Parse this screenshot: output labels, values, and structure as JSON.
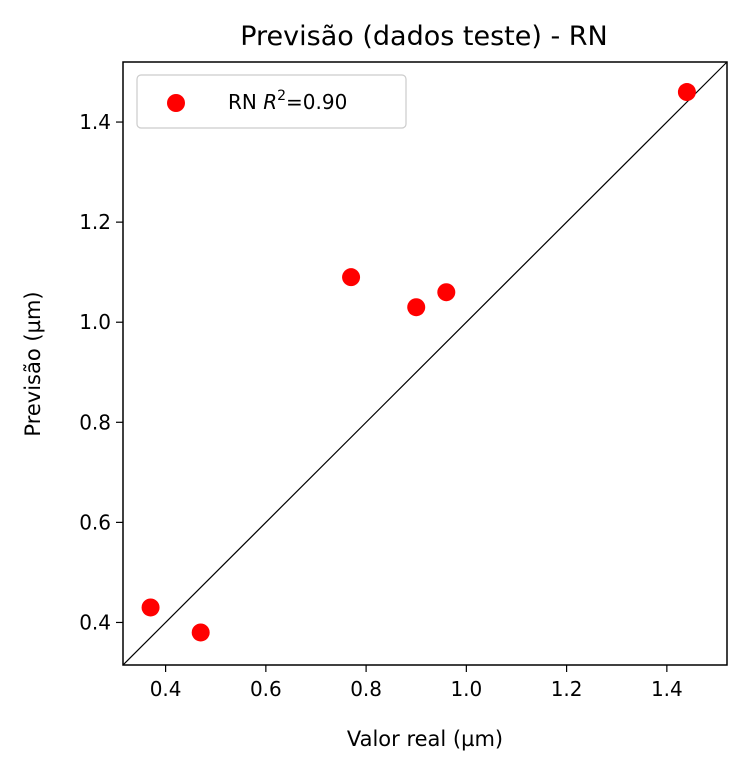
{
  "chart_data": {
    "type": "scatter",
    "title": "Previsão (dados teste) - RN",
    "xlabel": "Valor real (µm)",
    "ylabel": "Previsão (µm)",
    "xlim": [
      0.315,
      1.52
    ],
    "ylim": [
      0.315,
      1.52
    ],
    "xticks": [
      0.4,
      0.6,
      0.8,
      1.0,
      1.2,
      1.4
    ],
    "yticks": [
      0.4,
      0.6,
      0.8,
      1.0,
      1.2,
      1.4
    ],
    "xtick_labels": [
      "0.4",
      "0.6",
      "0.8",
      "1.0",
      "1.2",
      "1.4"
    ],
    "ytick_labels": [
      "0.4",
      "0.6",
      "0.8",
      "1.0",
      "1.2",
      "1.4"
    ],
    "grid": false,
    "legend_placement": "top-left",
    "reference_line": {
      "from": [
        0.315,
        0.315
      ],
      "to": [
        1.52,
        1.52
      ],
      "color": "#000000"
    },
    "series": [
      {
        "name": "RN R²=0.90",
        "legend_text": "RN ",
        "legend_r": "R",
        "legend_sup": "2",
        "legend_value": "=0.90",
        "color": "#ff0000",
        "points": [
          {
            "x": 0.37,
            "y": 0.43
          },
          {
            "x": 0.47,
            "y": 0.38
          },
          {
            "x": 0.77,
            "y": 1.09
          },
          {
            "x": 0.9,
            "y": 1.03
          },
          {
            "x": 0.96,
            "y": 1.06
          },
          {
            "x": 1.44,
            "y": 1.46
          }
        ]
      }
    ]
  }
}
